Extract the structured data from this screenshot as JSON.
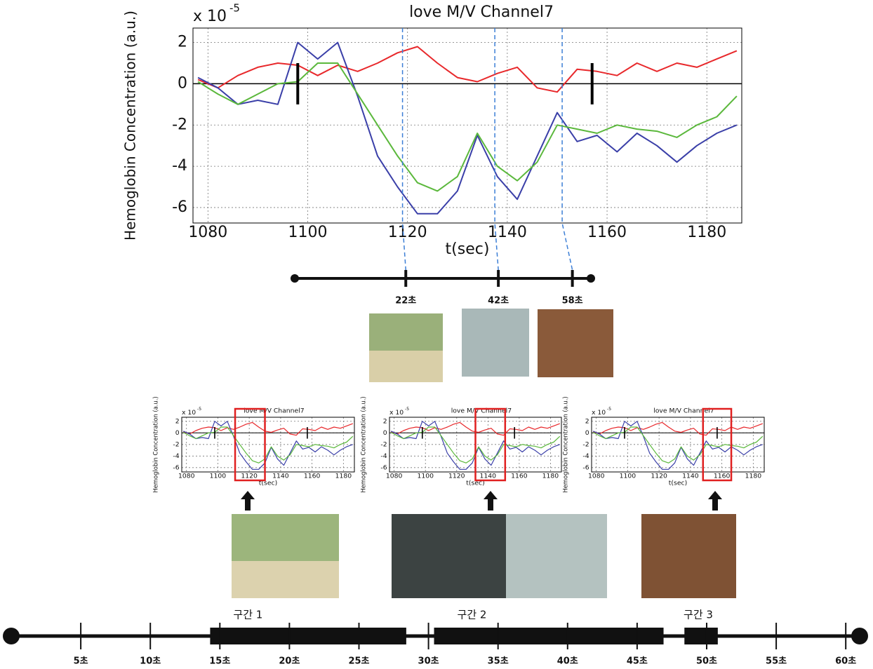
{
  "chart_data": [
    {
      "type": "line",
      "title": "love M/V Channel7",
      "scale_label": "x 10",
      "scale_exponent": "-5",
      "ylabel": "Hemoglobin Concentration (a.u.)",
      "xlabel": "t(sec)",
      "x": [
        1078,
        1082,
        1086,
        1090,
        1094,
        1098,
        1102,
        1106,
        1110,
        1114,
        1118,
        1122,
        1126,
        1130,
        1134,
        1138,
        1142,
        1146,
        1150,
        1154,
        1158,
        1162,
        1166,
        1170,
        1174,
        1178,
        1182,
        1186
      ],
      "series": [
        {
          "color": "#e8282b",
          "values": [
            0.2,
            -0.2,
            0.4,
            0.8,
            1.0,
            0.9,
            0.4,
            0.9,
            0.6,
            1.0,
            1.5,
            1.8,
            1.0,
            0.3,
            0.1,
            0.5,
            0.8,
            -0.2,
            -0.4,
            0.7,
            0.6,
            0.4,
            1.0,
            0.6,
            1.0,
            0.8,
            1.2,
            1.6
          ]
        },
        {
          "color": "#3a3fa8",
          "values": [
            0.3,
            -0.2,
            -1.0,
            -0.8,
            -1.0,
            2.0,
            1.2,
            2.0,
            -0.6,
            -3.5,
            -5.0,
            -6.3,
            -6.3,
            -5.2,
            -2.5,
            -4.5,
            -5.6,
            -3.5,
            -1.4,
            -2.8,
            -2.5,
            -3.3,
            -2.4,
            -3.0,
            -3.8,
            -3.0,
            -2.4,
            -2.0
          ]
        },
        {
          "color": "#5bb83c",
          "values": [
            0.1,
            -0.5,
            -1.0,
            -0.5,
            0.0,
            0.1,
            1.0,
            1.0,
            -0.5,
            -2.0,
            -3.5,
            -4.8,
            -5.2,
            -4.5,
            -2.4,
            -4.0,
            -4.7,
            -3.8,
            -2.0,
            -2.2,
            -2.4,
            -2.0,
            -2.2,
            -2.3,
            -2.6,
            -2.0,
            -1.6,
            -0.6
          ]
        }
      ],
      "xlim": [
        1077,
        1187
      ],
      "ylim": [
        -6.75,
        2.7
      ],
      "xticks": [
        1080,
        1100,
        1120,
        1140,
        1160,
        1180
      ],
      "yticks": [
        -6,
        -4,
        -2,
        0,
        2
      ],
      "grid": true,
      "event_bars": [
        1098,
        1157
      ],
      "event_bar_range": [
        -1,
        1
      ],
      "markers": [
        1119,
        1137.5,
        1151
      ],
      "highlights": [
        [
          1111,
          1130
        ],
        [
          1132,
          1151
        ],
        [
          1148,
          1166
        ]
      ]
    },
    {
      "type": "timeline",
      "xlim": [
        -2,
        62
      ],
      "ticks": [
        {
          "value": 22,
          "label": "22초"
        },
        {
          "value": 42,
          "label": "42초"
        },
        {
          "value": 58,
          "label": "58초"
        }
      ]
    },
    {
      "type": "timeline",
      "xlim": [
        0,
        61
      ],
      "ticks": [
        {
          "value": 5,
          "label": "5초"
        },
        {
          "value": 10,
          "label": "10초"
        },
        {
          "value": 15,
          "label": "15초"
        },
        {
          "value": 20,
          "label": "20초"
        },
        {
          "value": 25,
          "label": "25초"
        },
        {
          "value": 30,
          "label": "30초"
        },
        {
          "value": 35,
          "label": "35초"
        },
        {
          "value": 40,
          "label": "40초"
        },
        {
          "value": 45,
          "label": "45초"
        },
        {
          "value": 50,
          "label": "50초"
        },
        {
          "value": 55,
          "label": "55초"
        },
        {
          "value": 60,
          "label": "60초"
        }
      ],
      "sections": [
        {
          "label": "구간 1",
          "start": 14.3,
          "end": 28.4
        },
        {
          "label": "구간 2",
          "start": 30.4,
          "end": 46.9
        },
        {
          "label": "구간 3",
          "start": 48.4,
          "end": 50.8
        }
      ]
    }
  ]
}
